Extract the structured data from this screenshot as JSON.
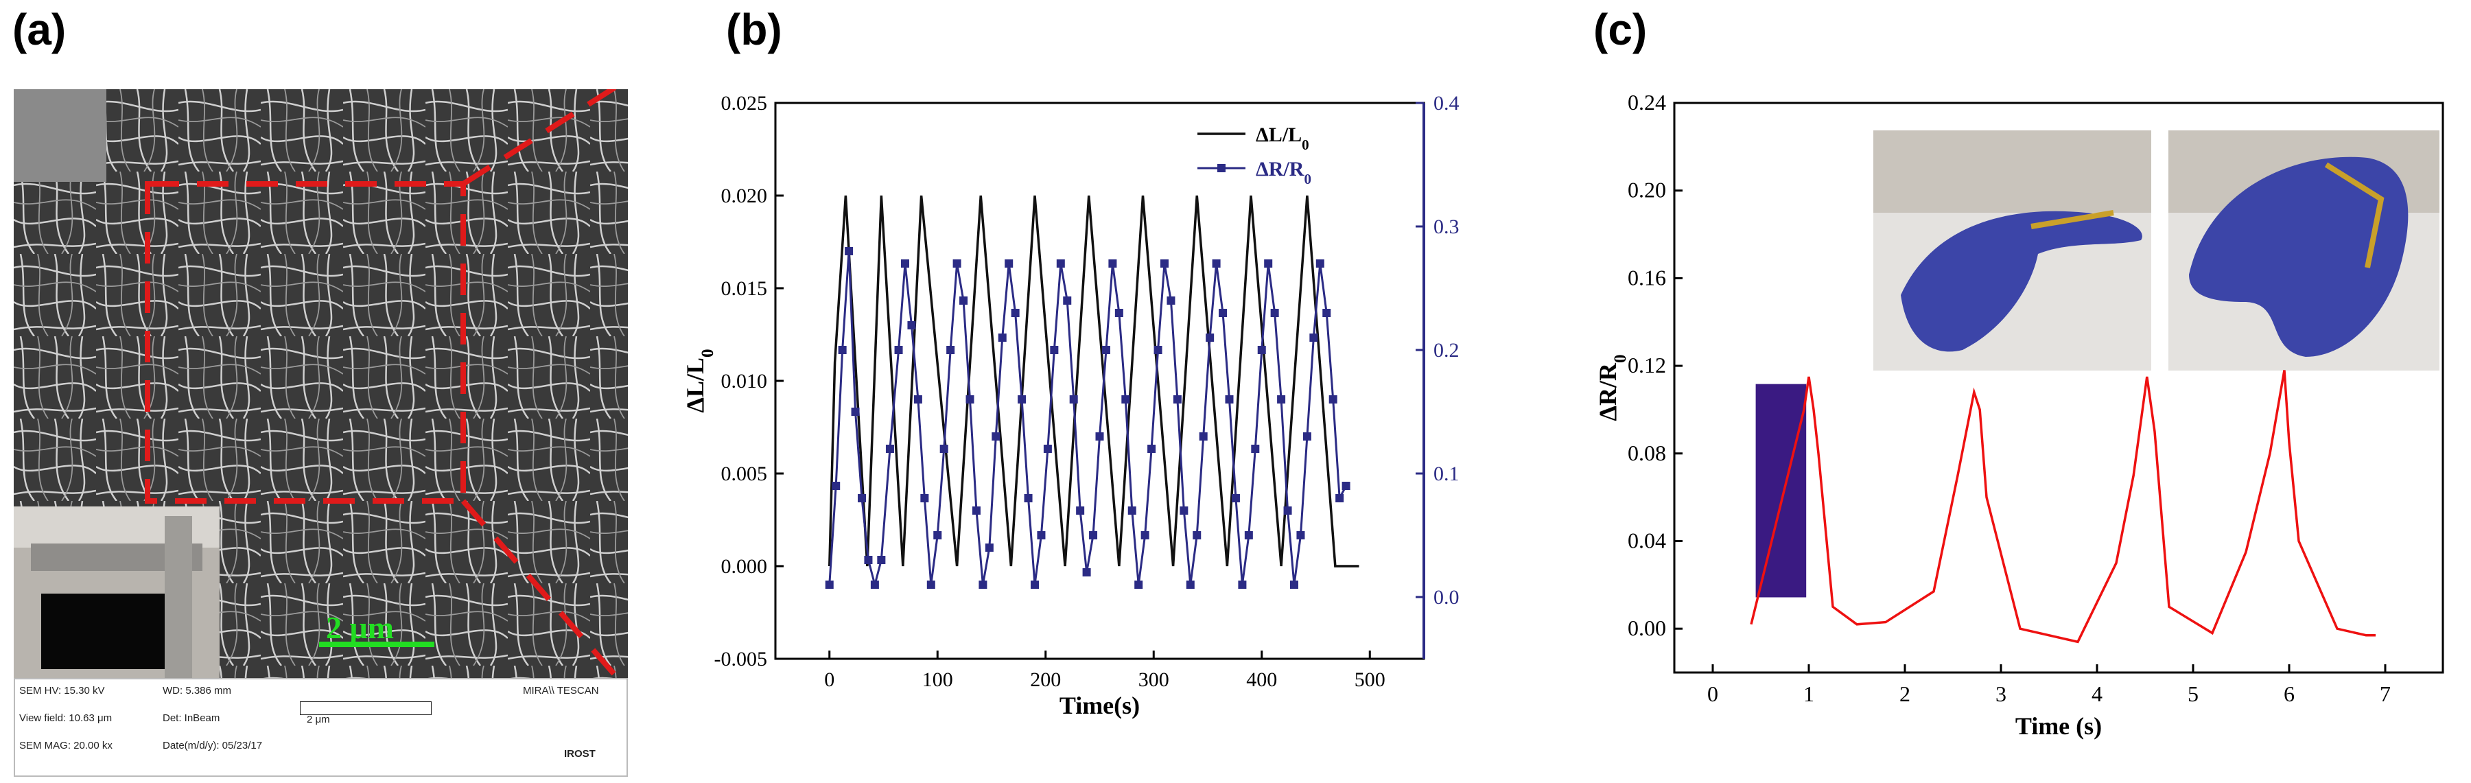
{
  "panels": {
    "a": {
      "label": "(a)"
    },
    "b": {
      "label": "(b)"
    },
    "c": {
      "label": "(c)"
    }
  },
  "sem": {
    "scale_bar_text": "2 μm",
    "footer": {
      "hv": "SEM HV: 15.30 kV",
      "wd": "WD: 5.386 mm",
      "brand": "MIRA\\\\ TESCAN",
      "view_field": "View field: 10.63 μm",
      "det": "Det: InBeam",
      "bar_label": "2 μm",
      "mag": "SEM MAG: 20.00 kx",
      "date": "Date(m/d/y): 05/23/17",
      "logo_text": "IROST"
    },
    "colors": {
      "guide_lines": "#e01a1a",
      "scale_bar": "#22dd22"
    }
  },
  "chart_data": [
    {
      "type": "line",
      "panel": "b",
      "xlabel": "Time(s)",
      "ylabel_left": "ΔL/L0",
      "ylabel_right": "",
      "xlim": [
        -50,
        550
      ],
      "ylim_left": [
        -0.005,
        0.025
      ],
      "ylim_right": [
        -0.05,
        0.4
      ],
      "x_ticks": [
        "0",
        "100",
        "200",
        "300",
        "400",
        "500"
      ],
      "y_left_ticks": [
        "-0.005",
        "0.000",
        "0.005",
        "0.010",
        "0.015",
        "0.020",
        "0.025"
      ],
      "y_right_ticks": [
        "0.0",
        "0.1",
        "0.2",
        "0.3",
        "0.4"
      ],
      "legend": [
        "ΔL/L0",
        "ΔR/R0"
      ],
      "series": [
        {
          "name": "ΔL/L0",
          "axis": "left",
          "color": "#111111",
          "x": [
            0,
            5,
            15,
            35,
            48,
            68,
            85,
            118,
            140,
            168,
            190,
            218,
            240,
            268,
            290,
            318,
            340,
            368,
            390,
            418,
            442,
            468,
            490
          ],
          "values": [
            0.0,
            0.011,
            0.02,
            0.0,
            0.02,
            0.0,
            0.02,
            0.0,
            0.02,
            0.0,
            0.02,
            0.0,
            0.02,
            0.0,
            0.02,
            0.0,
            0.02,
            0.0,
            0.02,
            0.0,
            0.02,
            0.0,
            0.0
          ]
        },
        {
          "name": "ΔR/R0",
          "axis": "right",
          "color": "#2b2b85",
          "x": [
            0,
            6,
            12,
            18,
            24,
            30,
            36,
            42,
            48,
            56,
            64,
            70,
            76,
            82,
            88,
            94,
            100,
            106,
            112,
            118,
            124,
            130,
            136,
            142,
            148,
            154,
            160,
            166,
            172,
            178,
            184,
            190,
            196,
            202,
            208,
            214,
            220,
            226,
            232,
            238,
            244,
            250,
            256,
            262,
            268,
            274,
            280,
            286,
            292,
            298,
            304,
            310,
            316,
            322,
            328,
            334,
            340,
            346,
            352,
            358,
            364,
            370,
            376,
            382,
            388,
            394,
            400,
            406,
            412,
            418,
            424,
            430,
            436,
            442,
            448,
            454,
            460,
            466,
            472,
            478
          ],
          "values": [
            0.01,
            0.09,
            0.2,
            0.28,
            0.15,
            0.08,
            0.03,
            0.01,
            0.03,
            0.12,
            0.2,
            0.27,
            0.22,
            0.16,
            0.08,
            0.01,
            0.05,
            0.12,
            0.2,
            0.27,
            0.24,
            0.16,
            0.07,
            0.01,
            0.04,
            0.13,
            0.21,
            0.27,
            0.23,
            0.16,
            0.08,
            0.01,
            0.05,
            0.12,
            0.2,
            0.27,
            0.24,
            0.16,
            0.07,
            0.02,
            0.05,
            0.13,
            0.2,
            0.27,
            0.23,
            0.16,
            0.07,
            0.01,
            0.05,
            0.12,
            0.2,
            0.27,
            0.24,
            0.16,
            0.07,
            0.01,
            0.05,
            0.13,
            0.21,
            0.27,
            0.23,
            0.16,
            0.08,
            0.01,
            0.05,
            0.12,
            0.2,
            0.27,
            0.23,
            0.16,
            0.07,
            0.01,
            0.05,
            0.13,
            0.21,
            0.27,
            0.23,
            0.16,
            0.08,
            0.09
          ]
        }
      ]
    },
    {
      "type": "line",
      "panel": "c",
      "xlabel": "Time (s)",
      "ylabel": "ΔR/R0",
      "xlim": [
        -0.4,
        7.6
      ],
      "ylim": [
        -0.02,
        0.24
      ],
      "x_ticks": [
        "0",
        "1",
        "2",
        "3",
        "4",
        "5",
        "6",
        "7"
      ],
      "y_ticks": [
        "0.00",
        "0.04",
        "0.08",
        "0.12",
        "0.16",
        "0.20",
        "0.24"
      ],
      "series": [
        {
          "name": "ΔR/R0",
          "color": "#ee1111",
          "x": [
            0.4,
            0.95,
            1.0,
            1.05,
            1.1,
            1.25,
            1.5,
            1.8,
            2.3,
            2.55,
            2.72,
            2.78,
            2.85,
            3.2,
            3.8,
            4.2,
            4.38,
            4.52,
            4.6,
            4.75,
            5.2,
            5.55,
            5.8,
            5.95,
            6.0,
            6.1,
            6.3,
            6.5,
            6.8,
            6.9
          ],
          "values": [
            0.002,
            0.1,
            0.115,
            0.1,
            0.08,
            0.01,
            0.002,
            0.003,
            0.017,
            0.07,
            0.108,
            0.1,
            0.06,
            0.0,
            -0.006,
            0.03,
            0.07,
            0.115,
            0.09,
            0.01,
            -0.002,
            0.035,
            0.08,
            0.118,
            0.085,
            0.04,
            0.02,
            0.0,
            -0.003,
            -0.003
          ]
        }
      ]
    }
  ]
}
